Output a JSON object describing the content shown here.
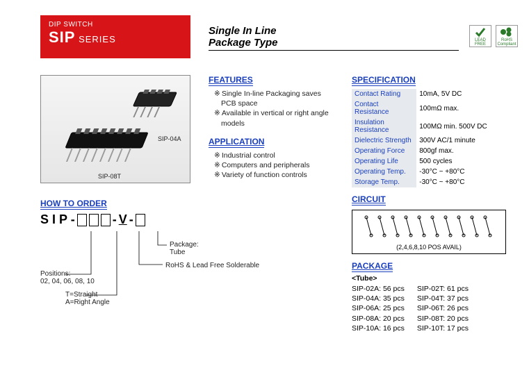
{
  "header": {
    "small": "DIP SWITCH",
    "large": "SIP",
    "series": " SERIES"
  },
  "subtitle_line1": "Single In Line",
  "subtitle_line2": "Package Type",
  "badges": {
    "leadfree": "LEAD FREE",
    "rohs": "RoHS Compliant"
  },
  "photo": {
    "label1": "SIP-04A",
    "label2": "SIP-08T"
  },
  "features": {
    "title": "FEATURES",
    "items": [
      "Single In-line Packaging saves PCB space",
      "Available in vertical or right angle models"
    ]
  },
  "application": {
    "title": "APPLICATION",
    "items": [
      "Industrial control",
      "Computers and peripherals",
      "Variety of function controls"
    ]
  },
  "specification": {
    "title": "SPECIFICATION",
    "rows": [
      {
        "k": "Contact Rating",
        "v": "10mA, 5V DC"
      },
      {
        "k": "Contact Resistance",
        "v": "100mΩ max."
      },
      {
        "k": "Insulation Resistance",
        "v": "100MΩ min. 500V DC"
      },
      {
        "k": "Dielectric Strength",
        "v": "300V AC/1 minute"
      },
      {
        "k": "Operating Force",
        "v": "800gf max."
      },
      {
        "k": "Operating Life",
        "v": "500 cycles"
      },
      {
        "k": "Operating Temp.",
        "v": "-30°C ~ +80°C"
      },
      {
        "k": "Storage Temp.",
        "v": "-30°C ~ +80°C"
      }
    ]
  },
  "circuit": {
    "title": "CIRCUIT",
    "caption": "(2,4,6,8,10 POS AVAIL)"
  },
  "how": {
    "title": "HOW TO ORDER",
    "prefix": "S I P -",
    "dash": "-",
    "v": "V",
    "labels": {
      "package": "Package:",
      "package_val": "Tube",
      "rohs": "RoHS & Lead Free Solderable",
      "positions": "Positions:",
      "positions_val": "02, 04, 06, 08, 10",
      "type": "T=Straight",
      "type2": "A=Right Angle"
    }
  },
  "package": {
    "title": "PACKAGE",
    "sub": "<Tube>",
    "col1": [
      "SIP-02A: 56 pcs",
      "SIP-04A: 35 pcs",
      "SIP-06A: 25 pcs",
      "SIP-08A: 20 pcs",
      "SIP-10A: 16 pcs"
    ],
    "col2": [
      "SIP-02T: 61 pcs",
      "SIP-04T: 37 pcs",
      "SIP-06T: 26 pcs",
      "SIP-08T: 20 pcs",
      "SIP-10T: 17 pcs"
    ]
  },
  "colors": {
    "accent_red": "#d71518",
    "accent_blue": "#1a3fbd",
    "spec_bg": "#e6eaef"
  }
}
